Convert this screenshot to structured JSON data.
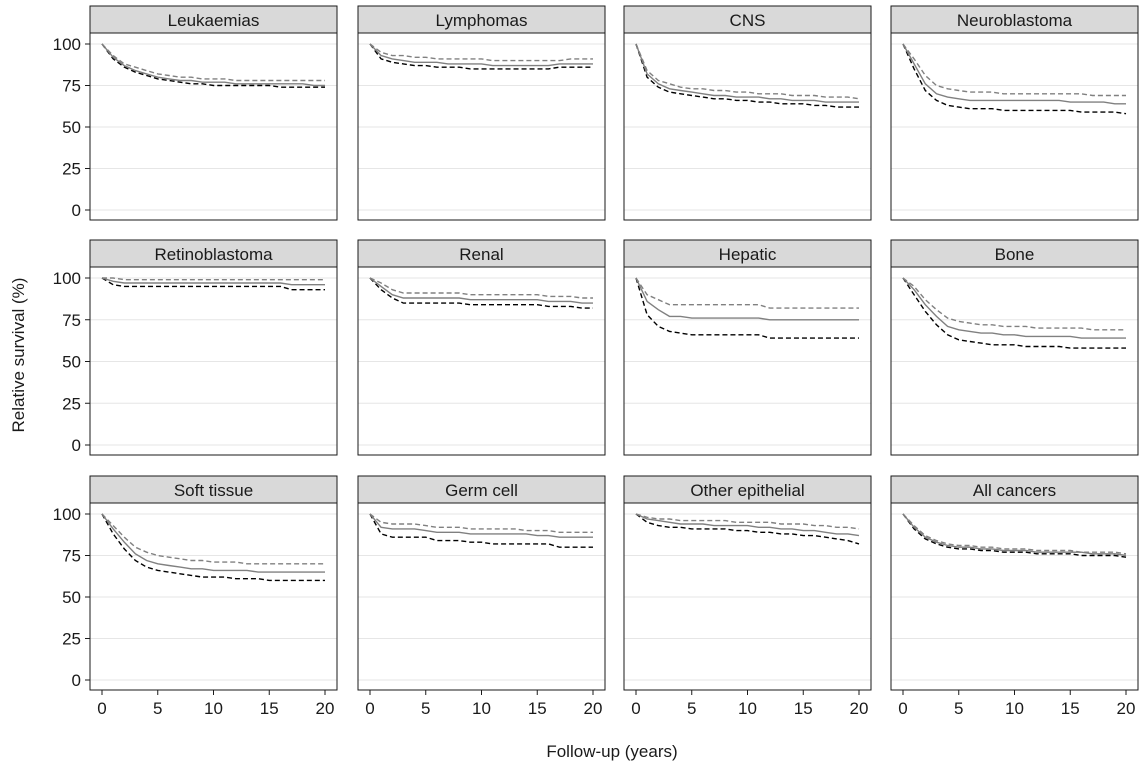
{
  "chart_data": {
    "type": "line",
    "xlabel": "Follow-up (years)",
    "ylabel": "Relative survival (%)",
    "xlim": [
      0,
      20
    ],
    "ylim": [
      0,
      100
    ],
    "x_ticks": [
      0,
      5,
      10,
      15,
      20
    ],
    "y_ticks": [
      0,
      25,
      50,
      75,
      100
    ],
    "grid": true,
    "line_styles": {
      "estimate": {
        "color": "#808080",
        "dash": "solid"
      },
      "upper": {
        "color": "#808080",
        "dash": "dashed"
      },
      "lower": {
        "color": "#000000",
        "dash": "dashed"
      }
    },
    "x": [
      0,
      1,
      2,
      3,
      4,
      5,
      6,
      7,
      8,
      9,
      10,
      11,
      12,
      13,
      14,
      15,
      16,
      17,
      18,
      19,
      20
    ],
    "panels": [
      {
        "title": "Leukaemias",
        "estimate": [
          100,
          92,
          87,
          84,
          82,
          80,
          79,
          78,
          78,
          77,
          77,
          77,
          76,
          76,
          76,
          76,
          76,
          76,
          76,
          75,
          75
        ],
        "upper": [
          100,
          93,
          88,
          86,
          84,
          82,
          81,
          80,
          80,
          79,
          79,
          79,
          78,
          78,
          78,
          78,
          78,
          78,
          78,
          78,
          78
        ],
        "lower": [
          100,
          91,
          86,
          83,
          81,
          79,
          78,
          77,
          76,
          76,
          75,
          75,
          75,
          75,
          75,
          75,
          74,
          74,
          74,
          74,
          74
        ]
      },
      {
        "title": "Lymphomas",
        "estimate": [
          100,
          93,
          91,
          90,
          89,
          89,
          89,
          88,
          88,
          88,
          88,
          87,
          87,
          87,
          87,
          87,
          87,
          88,
          88,
          88,
          88
        ],
        "upper": [
          100,
          95,
          93,
          93,
          92,
          92,
          91,
          91,
          91,
          91,
          91,
          90,
          90,
          90,
          90,
          90,
          90,
          90,
          91,
          91,
          91
        ],
        "lower": [
          100,
          91,
          89,
          88,
          87,
          87,
          86,
          86,
          86,
          85,
          85,
          85,
          85,
          85,
          85,
          85,
          85,
          86,
          86,
          86,
          86
        ]
      },
      {
        "title": "CNS",
        "estimate": [
          100,
          82,
          76,
          73,
          72,
          71,
          70,
          69,
          69,
          68,
          68,
          68,
          67,
          67,
          66,
          66,
          66,
          65,
          65,
          65,
          65
        ],
        "upper": [
          100,
          84,
          78,
          76,
          74,
          73,
          73,
          72,
          72,
          71,
          71,
          70,
          70,
          70,
          69,
          69,
          69,
          68,
          68,
          68,
          67
        ],
        "lower": [
          100,
          80,
          74,
          71,
          70,
          69,
          68,
          67,
          67,
          66,
          66,
          65,
          65,
          64,
          64,
          64,
          63,
          63,
          62,
          62,
          62
        ]
      },
      {
        "title": "Neuroblastoma",
        "estimate": [
          100,
          88,
          76,
          70,
          68,
          67,
          66,
          66,
          66,
          66,
          66,
          66,
          66,
          66,
          66,
          65,
          65,
          65,
          65,
          64,
          64
        ],
        "upper": [
          100,
          91,
          81,
          75,
          73,
          72,
          71,
          71,
          71,
          70,
          70,
          70,
          70,
          70,
          70,
          70,
          70,
          69,
          69,
          69,
          69
        ],
        "lower": [
          100,
          85,
          72,
          66,
          63,
          62,
          61,
          61,
          61,
          60,
          60,
          60,
          60,
          60,
          60,
          60,
          59,
          59,
          59,
          59,
          58
        ]
      },
      {
        "title": "Retinoblastoma",
        "estimate": [
          100,
          98,
          97,
          97,
          97,
          97,
          97,
          97,
          97,
          97,
          97,
          97,
          97,
          97,
          97,
          97,
          97,
          96,
          96,
          96,
          96
        ],
        "upper": [
          100,
          100,
          99,
          99,
          99,
          99,
          99,
          99,
          99,
          99,
          99,
          99,
          99,
          99,
          99,
          99,
          99,
          99,
          99,
          99,
          99
        ],
        "lower": [
          100,
          96,
          95,
          95,
          95,
          95,
          95,
          95,
          95,
          95,
          95,
          95,
          95,
          95,
          95,
          95,
          95,
          93,
          93,
          93,
          93
        ]
      },
      {
        "title": "Renal",
        "estimate": [
          100,
          95,
          90,
          88,
          88,
          88,
          88,
          88,
          88,
          87,
          87,
          87,
          87,
          87,
          87,
          87,
          86,
          86,
          86,
          85,
          85
        ],
        "upper": [
          100,
          97,
          93,
          91,
          91,
          91,
          91,
          91,
          91,
          90,
          90,
          90,
          90,
          90,
          90,
          90,
          89,
          89,
          89,
          88,
          88
        ],
        "lower": [
          100,
          93,
          88,
          85,
          85,
          85,
          85,
          85,
          85,
          84,
          84,
          84,
          84,
          84,
          84,
          84,
          83,
          83,
          83,
          82,
          82
        ]
      },
      {
        "title": "Hepatic",
        "estimate": [
          100,
          86,
          81,
          77,
          77,
          76,
          76,
          76,
          76,
          76,
          76,
          76,
          75,
          75,
          75,
          75,
          75,
          75,
          75,
          75,
          75
        ],
        "upper": [
          100,
          90,
          87,
          84,
          84,
          84,
          84,
          84,
          84,
          84,
          84,
          84,
          82,
          82,
          82,
          82,
          82,
          82,
          82,
          82,
          82
        ],
        "lower": [
          100,
          78,
          71,
          68,
          67,
          66,
          66,
          66,
          66,
          66,
          66,
          66,
          64,
          64,
          64,
          64,
          64,
          64,
          64,
          64,
          64
        ]
      },
      {
        "title": "Bone",
        "estimate": [
          100,
          93,
          84,
          77,
          71,
          69,
          68,
          67,
          67,
          66,
          66,
          65,
          65,
          65,
          65,
          65,
          64,
          64,
          64,
          64,
          64
        ],
        "upper": [
          100,
          95,
          87,
          81,
          76,
          74,
          73,
          72,
          72,
          71,
          71,
          71,
          70,
          70,
          70,
          70,
          70,
          69,
          69,
          69,
          69
        ],
        "lower": [
          100,
          90,
          80,
          72,
          66,
          63,
          62,
          61,
          60,
          60,
          60,
          59,
          59,
          59,
          59,
          58,
          58,
          58,
          58,
          58,
          58
        ]
      },
      {
        "title": "Soft tissue",
        "estimate": [
          100,
          91,
          83,
          76,
          72,
          70,
          69,
          68,
          67,
          67,
          66,
          66,
          66,
          66,
          65,
          65,
          65,
          65,
          65,
          65,
          65
        ],
        "upper": [
          100,
          93,
          86,
          80,
          77,
          75,
          74,
          73,
          72,
          72,
          71,
          71,
          71,
          70,
          70,
          70,
          70,
          70,
          70,
          70,
          70
        ],
        "lower": [
          100,
          88,
          79,
          72,
          68,
          66,
          65,
          64,
          63,
          62,
          62,
          62,
          61,
          61,
          61,
          60,
          60,
          60,
          60,
          60,
          60
        ]
      },
      {
        "title": "Germ cell",
        "estimate": [
          100,
          92,
          91,
          91,
          91,
          90,
          89,
          89,
          89,
          88,
          88,
          88,
          88,
          88,
          88,
          87,
          87,
          86,
          86,
          86,
          86
        ],
        "upper": [
          100,
          95,
          94,
          94,
          94,
          93,
          92,
          92,
          92,
          91,
          91,
          91,
          91,
          91,
          90,
          90,
          90,
          89,
          89,
          89,
          89
        ],
        "lower": [
          100,
          88,
          86,
          86,
          86,
          86,
          84,
          84,
          84,
          83,
          83,
          82,
          82,
          82,
          82,
          82,
          82,
          80,
          80,
          80,
          80
        ]
      },
      {
        "title": "Other epithelial",
        "estimate": [
          100,
          97,
          96,
          95,
          94,
          94,
          94,
          93,
          93,
          93,
          93,
          92,
          92,
          91,
          91,
          90,
          90,
          89,
          88,
          88,
          87
        ],
        "upper": [
          100,
          98,
          97,
          97,
          96,
          96,
          96,
          96,
          96,
          95,
          95,
          95,
          95,
          94,
          94,
          94,
          93,
          93,
          92,
          92,
          91
        ],
        "lower": [
          100,
          95,
          93,
          92,
          92,
          91,
          91,
          91,
          91,
          90,
          90,
          89,
          89,
          88,
          88,
          87,
          87,
          86,
          85,
          84,
          82
        ]
      },
      {
        "title": "All cancers",
        "estimate": [
          100,
          92,
          86,
          83,
          81,
          80,
          80,
          79,
          79,
          78,
          78,
          78,
          77,
          77,
          77,
          77,
          77,
          76,
          76,
          76,
          75
        ],
        "upper": [
          100,
          93,
          87,
          84,
          82,
          81,
          81,
          80,
          80,
          79,
          79,
          79,
          78,
          78,
          78,
          78,
          77,
          77,
          77,
          77,
          76
        ],
        "lower": [
          100,
          91,
          85,
          82,
          80,
          79,
          79,
          78,
          78,
          77,
          77,
          77,
          76,
          76,
          76,
          76,
          75,
          75,
          75,
          75,
          74
        ]
      }
    ]
  }
}
